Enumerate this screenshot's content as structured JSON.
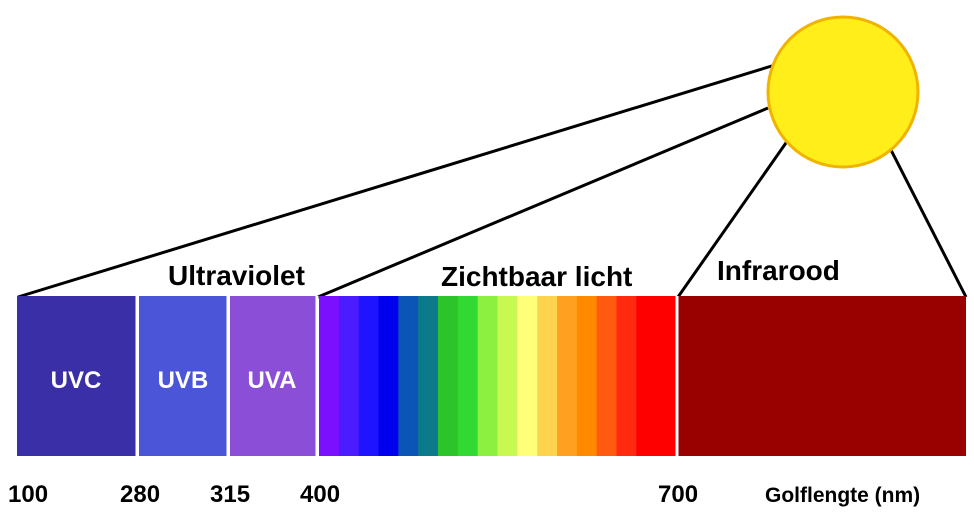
{
  "regions": {
    "ultraviolet": "Ultraviolet",
    "visible": "Zichtbaar licht",
    "infrared": "Infrarood"
  },
  "uv_bands": [
    {
      "label": "UVC",
      "color": "#3a2fa6"
    },
    {
      "label": "UVB",
      "color": "#4a55d8"
    },
    {
      "label": "UVA",
      "color": "#8a4fd6"
    }
  ],
  "visible_colors": [
    "#7a10ff",
    "#4b1cff",
    "#1e14ff",
    "#0000ee",
    "#0a55b5",
    "#0b7a8a",
    "#2bc42b",
    "#33d933",
    "#8cf040",
    "#c8f852",
    "#ffff7a",
    "#ffd34d",
    "#ffa020",
    "#ff8a00",
    "#ff5a10",
    "#ff2a10",
    "#ff0000",
    "#ff0000"
  ],
  "infrared_color": "#990000",
  "sun_color": "#ffee1a",
  "ticks": [
    "100",
    "280",
    "315",
    "400",
    "700"
  ],
  "axis_label": "Golflengte (nm)"
}
